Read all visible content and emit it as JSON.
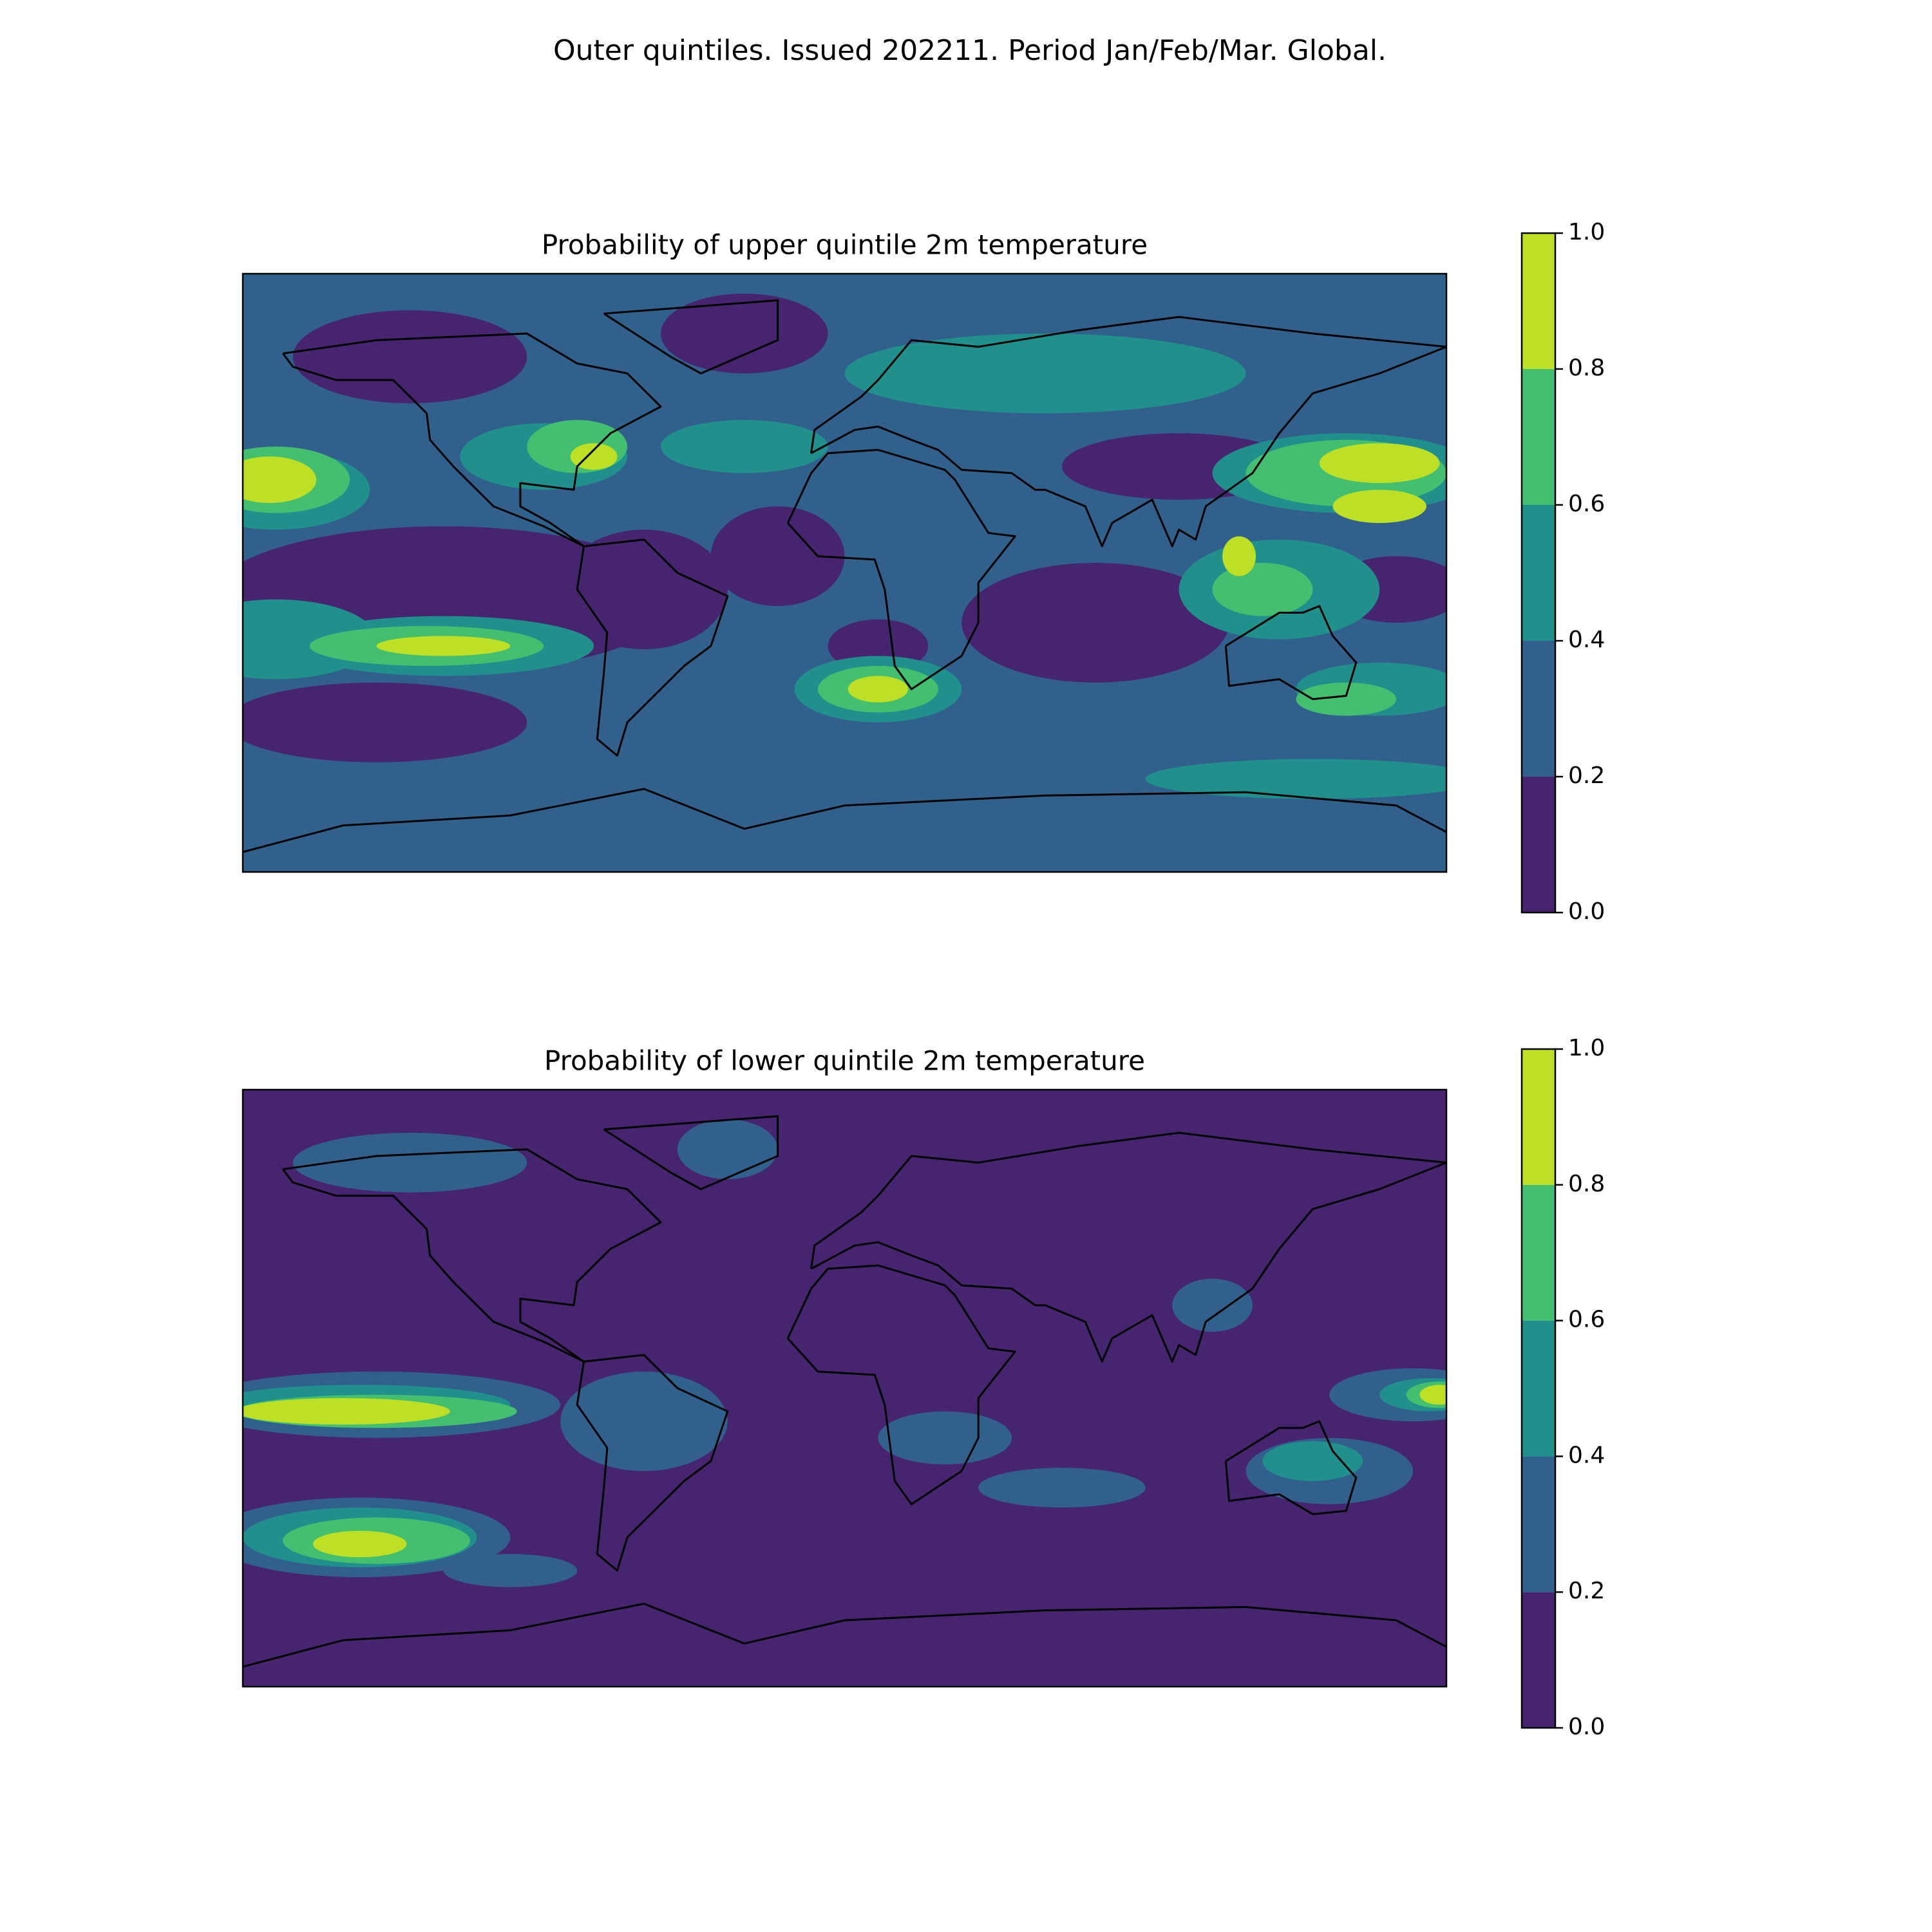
{
  "figure_title": "Outer quintiles. Issued 202211. Period Jan/Feb/Mar. Global.",
  "chart_data": [
    {
      "type": "map",
      "title": "Probability of upper quintile 2m temperature",
      "colorbar": {
        "ticks": [
          {
            "value": 0,
            "label": "0.0"
          },
          {
            "value": 0.2,
            "label": "0.2"
          },
          {
            "value": 0.4,
            "label": "0.4"
          },
          {
            "value": 0.6,
            "label": "0.6"
          },
          {
            "value": 0.8,
            "label": "0.8"
          },
          {
            "value": 1,
            "label": "1.0"
          }
        ],
        "colors": [
          "#46246f",
          "#31608d",
          "#21908d",
          "#44bf70",
          "#bddf26"
        ]
      }
    },
    {
      "type": "map",
      "title": "Probability of lower quintile 2m temperature",
      "colorbar": {
        "ticks": [
          {
            "value": 0,
            "label": "0.0"
          },
          {
            "value": 0.2,
            "label": "0.2"
          },
          {
            "value": 0.4,
            "label": "0.4"
          },
          {
            "value": 0.6,
            "label": "0.6"
          },
          {
            "value": 0.8,
            "label": "0.8"
          },
          {
            "value": 1,
            "label": "1.0"
          }
        ],
        "colors": [
          "#46246f",
          "#31608d",
          "#21908d",
          "#44bf70",
          "#bddf26"
        ]
      }
    }
  ]
}
